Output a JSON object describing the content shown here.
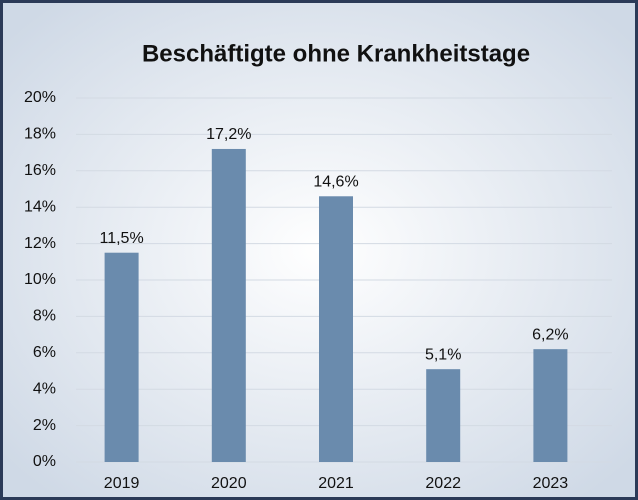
{
  "chart_data": {
    "type": "bar",
    "title": "Beschäftigte ohne Krankheitstage",
    "categories": [
      "2019",
      "2020",
      "2021",
      "2022",
      "2023"
    ],
    "values": [
      11.5,
      17.2,
      14.6,
      5.1,
      6.2
    ],
    "value_labels": [
      "11,5%",
      "17,2%",
      "14,6%",
      "5,1%",
      "6,2%"
    ],
    "color": "#6a8bad",
    "ylim": [
      0,
      20
    ],
    "yticks": [
      {
        "value": 0,
        "label": "0%"
      },
      {
        "value": 2,
        "label": "2%"
      },
      {
        "value": 4,
        "label": "4%"
      },
      {
        "value": 6,
        "label": "6%"
      },
      {
        "value": 8,
        "label": "8%"
      },
      {
        "value": 10,
        "label": "10%"
      },
      {
        "value": 12,
        "label": "12%"
      },
      {
        "value": 14,
        "label": "14%"
      },
      {
        "value": 16,
        "label": "16%"
      },
      {
        "value": 18,
        "label": "18%"
      },
      {
        "value": 20,
        "label": "20%"
      }
    ],
    "grid": true
  }
}
